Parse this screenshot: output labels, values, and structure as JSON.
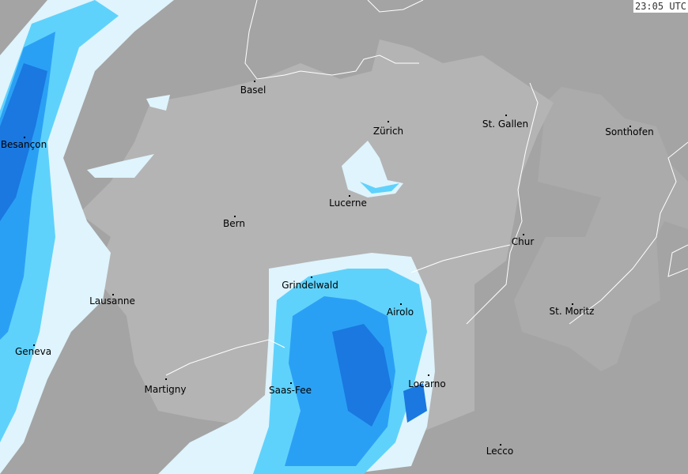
{
  "timestamp": "23:05 UTC",
  "colors": {
    "background": "#a4a4a4",
    "switzerland": "#b4b4b4",
    "neighbour_light": "#ababab",
    "borders": "#ffffff",
    "precip_light": "#dff4fc",
    "precip_moderate": "#5fd2fc",
    "precip_heavy": "#2aa0f5",
    "precip_very_heavy": "#1a78e0"
  },
  "cities": [
    {
      "name": "Basel"
    },
    {
      "name": "Zürich"
    },
    {
      "name": "St. Gallen"
    },
    {
      "name": "Sonthofen"
    },
    {
      "name": "Besançon"
    },
    {
      "name": "Lucerne"
    },
    {
      "name": "Bern"
    },
    {
      "name": "Chur"
    },
    {
      "name": "Grindelwald"
    },
    {
      "name": "Lausanne"
    },
    {
      "name": "Airolo"
    },
    {
      "name": "St. Moritz"
    },
    {
      "name": "Geneva"
    },
    {
      "name": "Martigny"
    },
    {
      "name": "Saas-Fee"
    },
    {
      "name": "Locarno"
    },
    {
      "name": "Lecco"
    }
  ]
}
